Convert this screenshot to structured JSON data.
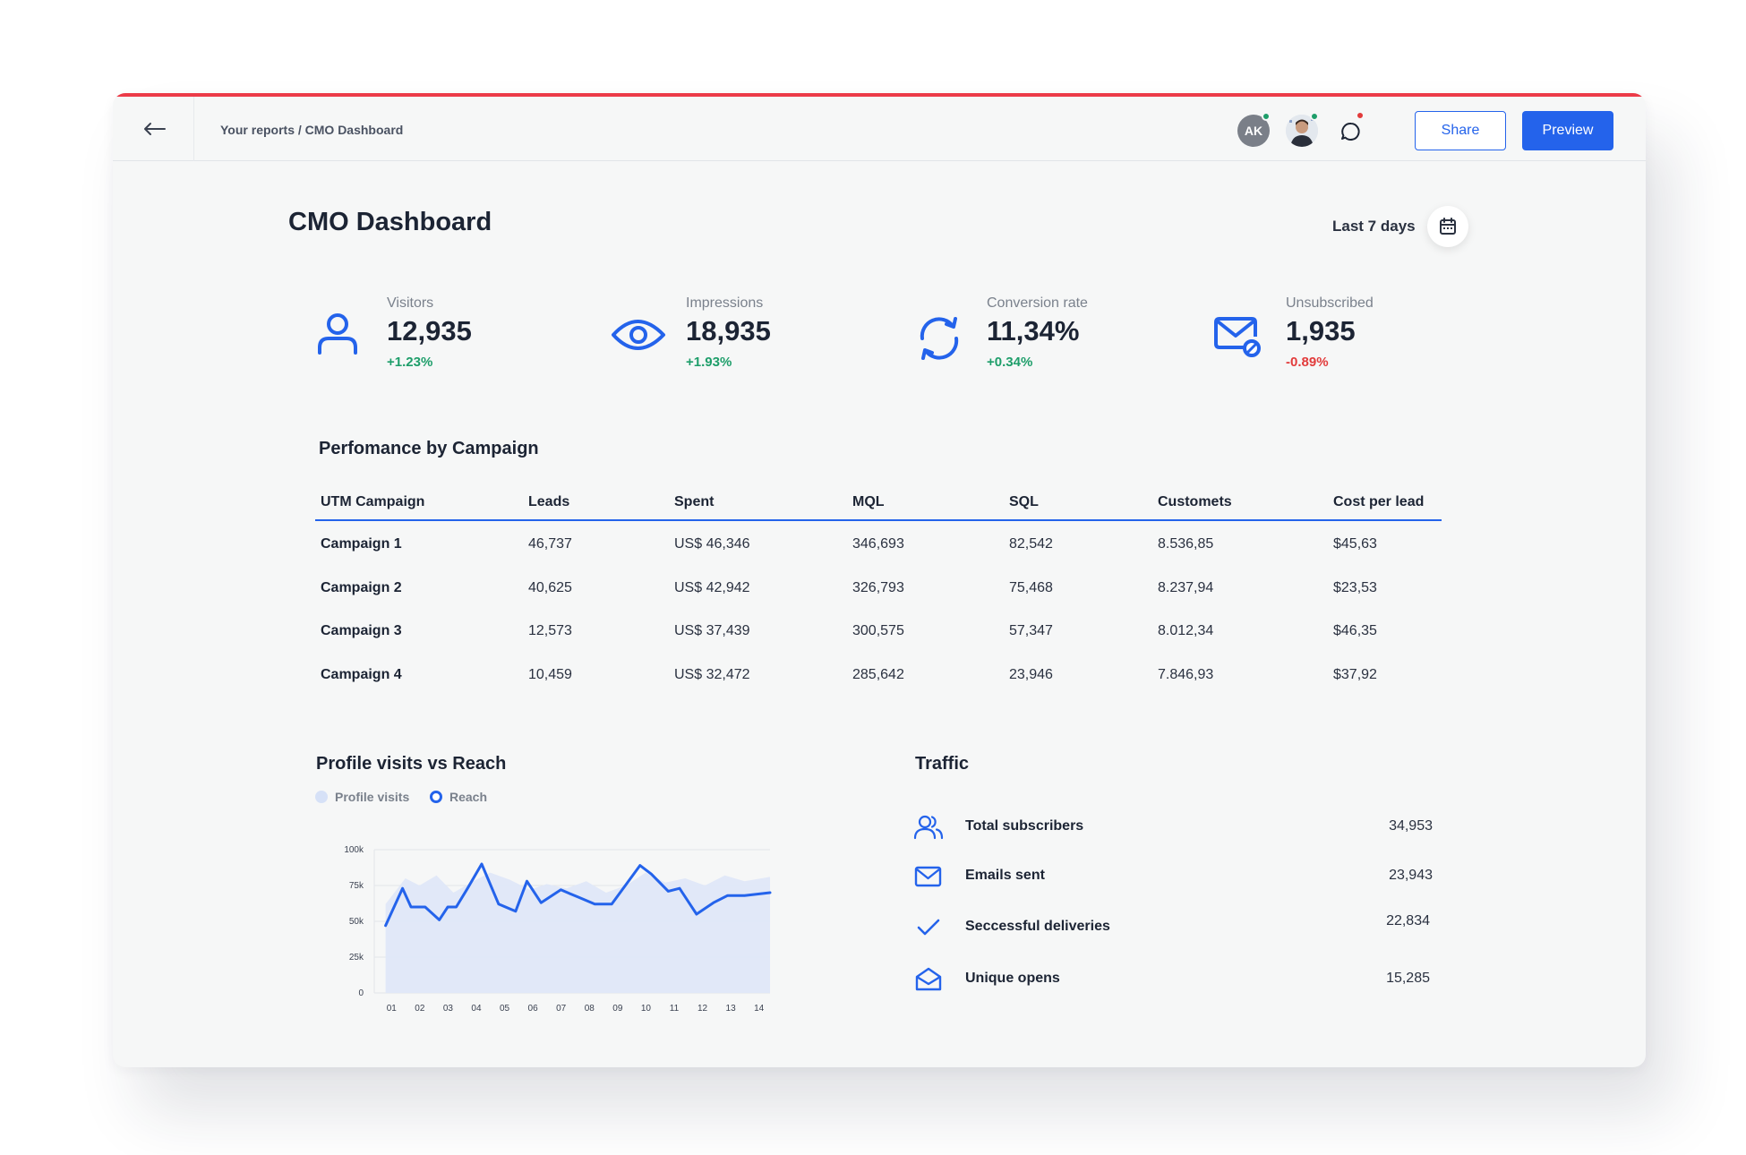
{
  "header": {
    "breadcrumb": "Your reports / CMO Dashboard",
    "avatar_initials": "AK",
    "share_label": "Share",
    "preview_label": "Preview"
  },
  "page": {
    "title": "CMO Dashboard",
    "date_range": "Last 7 days"
  },
  "kpis": [
    {
      "label": "Visitors",
      "value": "12,935",
      "delta": "+1.23%",
      "icon": "user-icon"
    },
    {
      "label": "Impressions",
      "value": "18,935",
      "delta": "+1.93%",
      "icon": "eye-icon"
    },
    {
      "label": "Conversion rate",
      "value": "11,34%",
      "delta": "+0.34%",
      "icon": "refresh-icon"
    },
    {
      "label": "Unsubscribed",
      "value": "1,935",
      "delta": "-0.89%",
      "icon": "mail-blocked-icon"
    }
  ],
  "campaign_table": {
    "title": "Perfomance by Campaign",
    "columns": [
      "UTM Campaign",
      "Leads",
      "Spent",
      "MQL",
      "SQL",
      "Customets",
      "Cost per lead"
    ],
    "rows": [
      [
        "Campaign 1",
        "46,737",
        "US$ 46,346",
        "346,693",
        "82,542",
        "8.536,85",
        "$45,63"
      ],
      [
        "Campaign 2",
        "40,625",
        "US$ 42,942",
        "326,793",
        "75,468",
        "8.237,94",
        "$23,53"
      ],
      [
        "Campaign 3",
        "12,573",
        "US$ 37,439",
        "300,575",
        "57,347",
        "8.012,34",
        "$46,35"
      ],
      [
        "Campaign 4",
        "10,459",
        "US$ 32,472",
        "285,642",
        "23,946",
        "7.846,93",
        "$37,92"
      ]
    ]
  },
  "chart_section": {
    "title": "Profile visits vs Reach"
  },
  "chart_data": {
    "type": "area",
    "title": "Profile visits vs Reach",
    "xlabel": "",
    "ylabel": "",
    "ylim": [
      0,
      100000
    ],
    "yticks": [
      "0",
      "25k",
      "50k",
      "75k",
      "100k"
    ],
    "xticks": [
      "01",
      "02",
      "03",
      "04",
      "05",
      "06",
      "07",
      "08",
      "09",
      "10",
      "11",
      "12",
      "13",
      "14"
    ],
    "grid": true,
    "legend": "top-left",
    "series": [
      {
        "name": "Profile visits",
        "color": "#dce6f9",
        "x": [
          0.6,
          1.3,
          1.8,
          2.4,
          3.0,
          3.7,
          4.3,
          5.0,
          5.7,
          6.3,
          7.0,
          7.7,
          8.4,
          9.1,
          9.8,
          10.5,
          11.2,
          11.9,
          12.6,
          13.3,
          14.2
        ],
        "values": [
          62000,
          80000,
          75000,
          82000,
          70000,
          78000,
          84000,
          79000,
          72000,
          76000,
          73000,
          78000,
          70000,
          75000,
          84000,
          77000,
          80000,
          75000,
          82000,
          78000,
          81000
        ]
      },
      {
        "name": "Reach",
        "color": "#2463eb",
        "x": [
          0.6,
          1.2,
          1.5,
          2.0,
          2.5,
          2.8,
          3.1,
          3.5,
          4.0,
          4.6,
          5.2,
          5.6,
          6.1,
          6.8,
          7.4,
          8.0,
          8.6,
          9.6,
          10.0,
          10.6,
          11.0,
          11.6,
          12.2,
          12.7,
          13.3,
          14.2
        ],
        "values": [
          47000,
          73000,
          60000,
          60000,
          51000,
          60000,
          60000,
          73000,
          90000,
          62000,
          57000,
          78000,
          63000,
          72000,
          67000,
          62000,
          62000,
          89000,
          83000,
          71000,
          73000,
          55000,
          63000,
          68000,
          68000,
          70000
        ]
      }
    ]
  },
  "traffic": {
    "title": "Traffic",
    "rows": [
      {
        "label": "Total subscribers",
        "value": "34,953"
      },
      {
        "label": "Emails sent",
        "value": "23,943"
      },
      {
        "label": "Seccessful deliveries",
        "value": "22,834"
      },
      {
        "label": "Unique opens",
        "value": "15,285"
      }
    ]
  },
  "colors": {
    "accent": "#2463eb",
    "positive": "#1e9e6a",
    "negative": "#e23b3b",
    "top_stripe": "#ec3b48"
  }
}
